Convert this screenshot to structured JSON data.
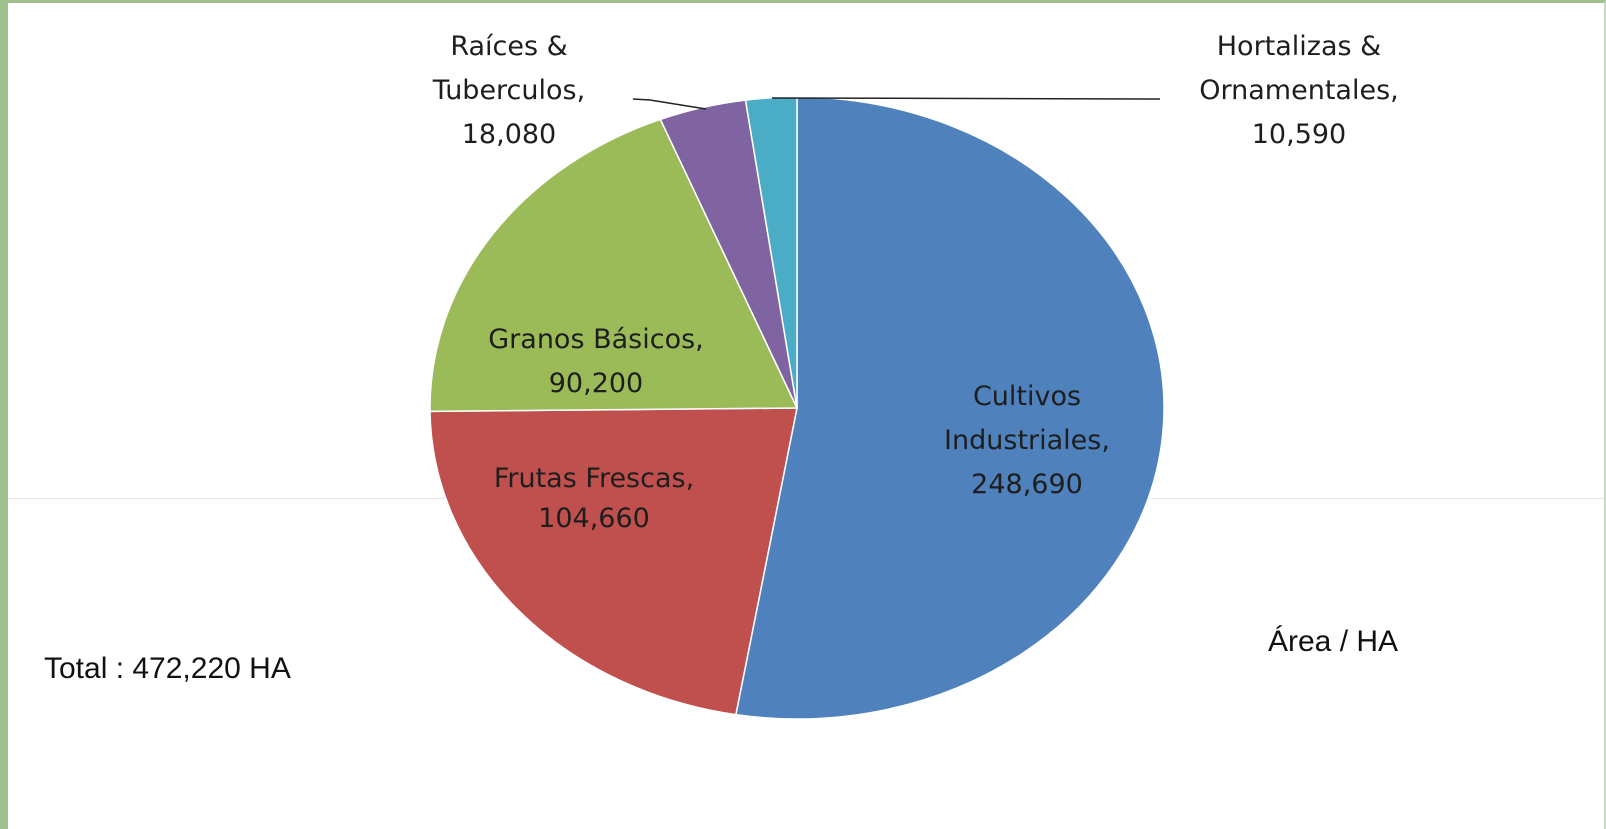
{
  "chart_data": {
    "type": "pie",
    "slices": [
      {
        "label_lines": [
          "Cultivos",
          "Industriales,",
          "248,690"
        ],
        "category": "Cultivos Industriales",
        "value": 248690,
        "color": "#4f81bd"
      },
      {
        "label_lines": [
          "Frutas Frescas,",
          "104,660"
        ],
        "category": "Frutas Frescas",
        "value": 104660,
        "color": "#c0504d"
      },
      {
        "label_lines": [
          "Granos Básicos,",
          "90,200"
        ],
        "category": "Granos Básicos",
        "value": 90200,
        "color": "#9bbb59"
      },
      {
        "label_lines": [
          "Raíces &",
          "Tuberculos,",
          "18,080"
        ],
        "category": "Raíces & Tuberculos",
        "value": 18080,
        "color": "#8064a2"
      },
      {
        "label_lines": [
          "Hortalizas &",
          "Ornamentales,",
          "10,590"
        ],
        "category": "Hortalizas & Ornamentales",
        "value": 10590,
        "color": "#4bacc6"
      }
    ],
    "start": "top, clockwise",
    "label_placement": {
      "Cultivos Industriales": "inside",
      "Frutas Frescas": "inside",
      "Granos Básicos": "inside",
      "Raíces & Tuberculos": "outside-leader",
      "Hortalizas & Ornamentales": "outside-leader"
    }
  },
  "notes": {
    "total": "Total : 472,220 HA",
    "unit": "Área  / HA"
  }
}
